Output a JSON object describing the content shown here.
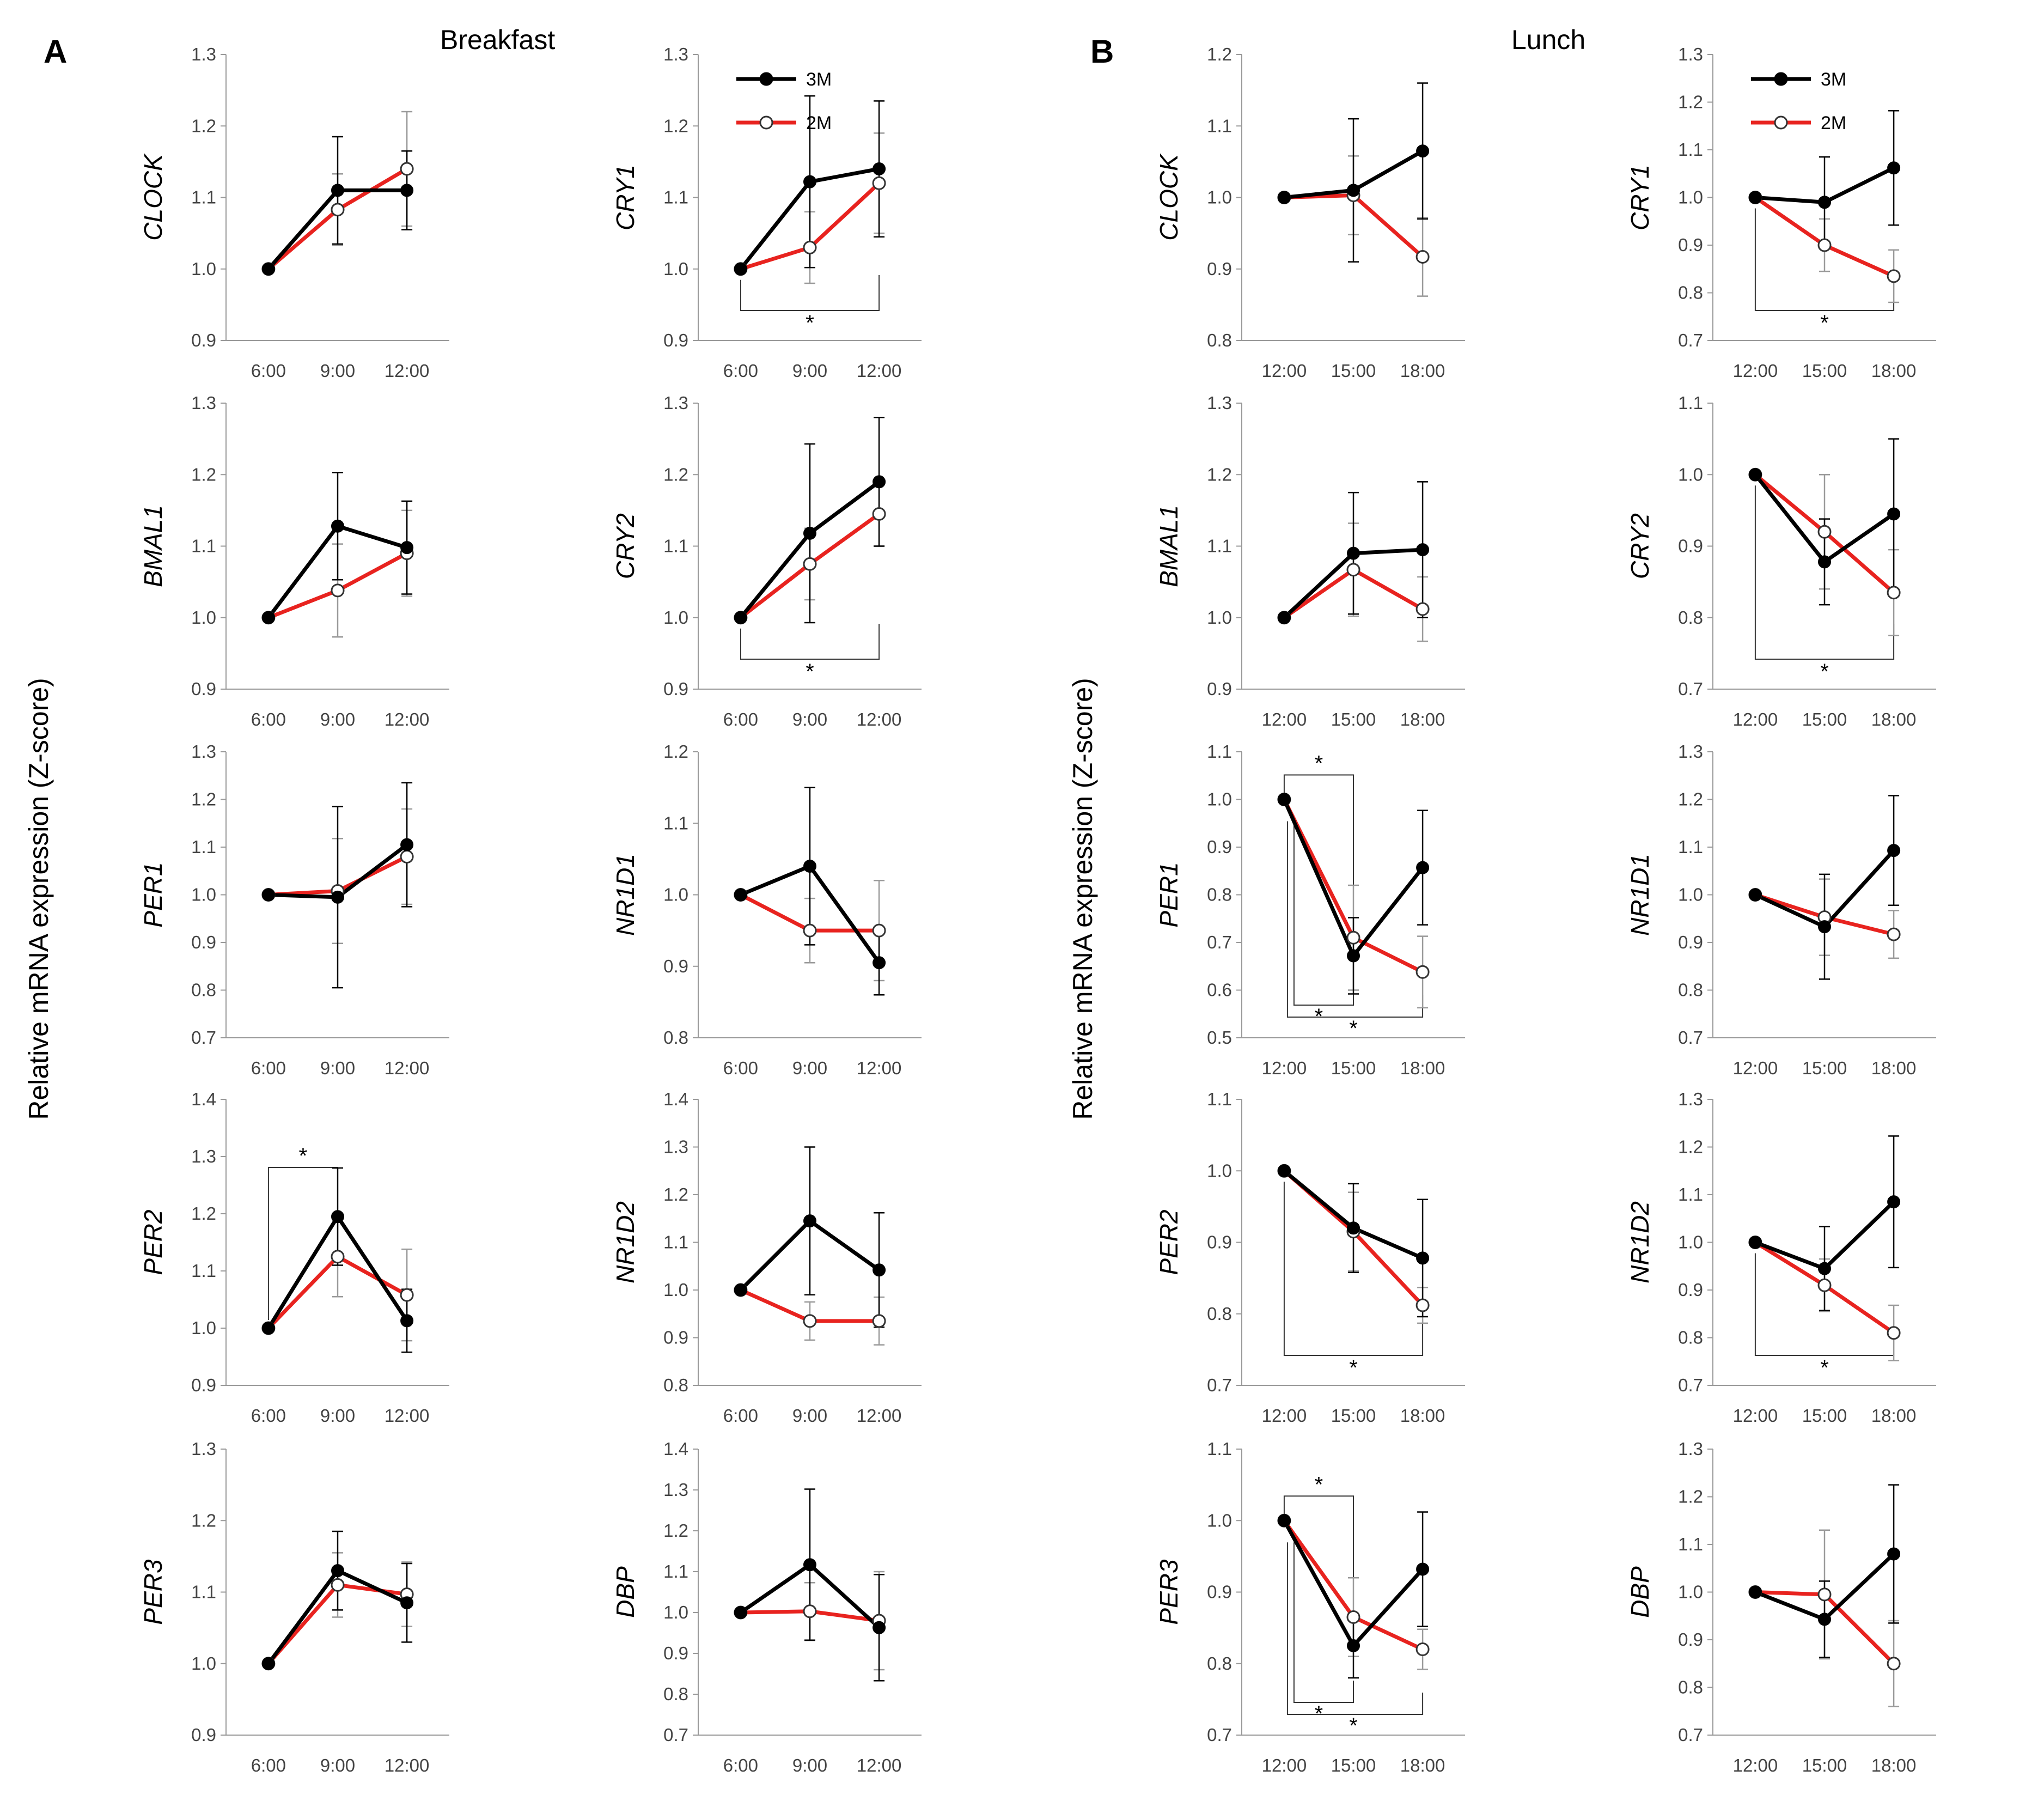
{
  "figure": {
    "colors": {
      "series_3M": "#000000",
      "series_2M": "#e8231f",
      "axis": "#999999",
      "error_2M": "#9a9a9a",
      "bracket": "#333333"
    },
    "panels": [
      {
        "letter": "A",
        "title": "Breakfast"
      },
      {
        "letter": "B",
        "title": "Lunch"
      }
    ],
    "shared_ylabel": "Relative mRNA expression (Z-score)",
    "legend": [
      {
        "name": "3M",
        "marker": "filled"
      },
      {
        "name": "2M",
        "marker": "open"
      }
    ]
  },
  "chart_data": [
    {
      "type": "line",
      "panel": "A",
      "gene": "CLOCK",
      "categories": [
        "6:00",
        "9:00",
        "12:00"
      ],
      "ylim": [
        0.9,
        1.3
      ],
      "yticks": [
        "0.9",
        "1.0",
        "1.1",
        "1.2",
        "1.3"
      ],
      "series": [
        {
          "name": "3M",
          "values": [
            1.0,
            1.11,
            1.11
          ],
          "err": [
            0,
            0.075,
            0.055
          ]
        },
        {
          "name": "2M",
          "values": [
            1.0,
            1.083,
            1.14
          ],
          "err": [
            0,
            0.05,
            0.08
          ]
        }
      ],
      "brackets": []
    },
    {
      "type": "line",
      "panel": "A",
      "gene": "CRY1",
      "categories": [
        "6:00",
        "9:00",
        "12:00"
      ],
      "ylim": [
        0.9,
        1.3
      ],
      "yticks": [
        "0.9",
        "1.0",
        "1.1",
        "1.2",
        "1.3"
      ],
      "legend": true,
      "series": [
        {
          "name": "3M",
          "values": [
            1.0,
            1.122,
            1.14
          ],
          "err": [
            0,
            0.12,
            0.095
          ]
        },
        {
          "name": "2M",
          "values": [
            1.0,
            1.03,
            1.12
          ],
          "err": [
            0,
            0.05,
            0.07
          ]
        }
      ],
      "brackets": [
        {
          "from": 0,
          "to": 2,
          "label": "*"
        }
      ]
    },
    {
      "type": "line",
      "panel": "A",
      "gene": "BMAL1",
      "categories": [
        "6:00",
        "9:00",
        "12:00"
      ],
      "ylim": [
        0.9,
        1.3
      ],
      "yticks": [
        "0.9",
        "1.0",
        "1.1",
        "1.2",
        "1.3"
      ],
      "series": [
        {
          "name": "3M",
          "values": [
            1.0,
            1.128,
            1.098
          ],
          "err": [
            0,
            0.075,
            0.065
          ]
        },
        {
          "name": "2M",
          "values": [
            1.0,
            1.038,
            1.09
          ],
          "err": [
            0,
            0.065,
            0.06
          ]
        }
      ],
      "brackets": []
    },
    {
      "type": "line",
      "panel": "A",
      "gene": "CRY2",
      "categories": [
        "6:00",
        "9:00",
        "12:00"
      ],
      "ylim": [
        0.9,
        1.3
      ],
      "yticks": [
        "0.9",
        "1.0",
        "1.1",
        "1.2",
        "1.3"
      ],
      "series": [
        {
          "name": "3M",
          "values": [
            1.0,
            1.118,
            1.19
          ],
          "err": [
            0,
            0.125,
            0.09
          ]
        },
        {
          "name": "2M",
          "values": [
            1.0,
            1.075,
            1.145
          ],
          "err": [
            0,
            0.05,
            0.045
          ]
        }
      ],
      "brackets": [
        {
          "from": 0,
          "to": 2,
          "label": "*"
        }
      ]
    },
    {
      "type": "line",
      "panel": "A",
      "gene": "PER1",
      "categories": [
        "6:00",
        "9:00",
        "12:00"
      ],
      "ylim": [
        0.7,
        1.3
      ],
      "yticks": [
        "0.7",
        "0.8",
        "0.9",
        "1.0",
        "1.1",
        "1.2",
        "1.3"
      ],
      "series": [
        {
          "name": "3M",
          "values": [
            1.0,
            0.995,
            1.105
          ],
          "err": [
            0,
            0.19,
            0.13
          ]
        },
        {
          "name": "2M",
          "values": [
            1.0,
            1.008,
            1.08
          ],
          "err": [
            0,
            0.11,
            0.1
          ]
        }
      ],
      "brackets": []
    },
    {
      "type": "line",
      "panel": "A",
      "gene": "NR1D1",
      "categories": [
        "6:00",
        "9:00",
        "12:00"
      ],
      "ylim": [
        0.8,
        1.2
      ],
      "yticks": [
        "0.8",
        "0.9",
        "1.0",
        "1.1",
        "1.2"
      ],
      "series": [
        {
          "name": "3M",
          "values": [
            1.0,
            1.04,
            0.905
          ],
          "err": [
            0,
            0.11,
            0.045
          ]
        },
        {
          "name": "2M",
          "values": [
            1.0,
            0.95,
            0.95
          ],
          "err": [
            0,
            0.045,
            0.07
          ]
        }
      ],
      "brackets": []
    },
    {
      "type": "line",
      "panel": "A",
      "gene": "PER2",
      "categories": [
        "6:00",
        "9:00",
        "12:00"
      ],
      "ylim": [
        0.9,
        1.4
      ],
      "yticks": [
        "0.9",
        "1.0",
        "1.1",
        "1.2",
        "1.3",
        "1.4"
      ],
      "series": [
        {
          "name": "3M",
          "values": [
            1.0,
            1.195,
            1.013
          ],
          "err": [
            0,
            0.085,
            0.055
          ]
        },
        {
          "name": "2M",
          "values": [
            1.0,
            1.125,
            1.058
          ],
          "err": [
            0,
            0.07,
            0.08
          ]
        }
      ],
      "brackets": [
        {
          "from": 0,
          "to": 1,
          "label": "*"
        }
      ]
    },
    {
      "type": "line",
      "panel": "A",
      "gene": "NR1D2",
      "categories": [
        "6:00",
        "9:00",
        "12:00"
      ],
      "ylim": [
        0.8,
        1.4
      ],
      "yticks": [
        "0.8",
        "0.9",
        "1.0",
        "1.1",
        "1.2",
        "1.3",
        "1.4"
      ],
      "series": [
        {
          "name": "3M",
          "values": [
            1.0,
            1.145,
            1.042
          ],
          "err": [
            0,
            0.155,
            0.12
          ]
        },
        {
          "name": "2M",
          "values": [
            1.0,
            0.935,
            0.935
          ],
          "err": [
            0,
            0.04,
            0.05
          ]
        }
      ],
      "brackets": []
    },
    {
      "type": "line",
      "panel": "A",
      "gene": "PER3",
      "categories": [
        "6:00",
        "9:00",
        "12:00"
      ],
      "ylim": [
        0.9,
        1.3
      ],
      "yticks": [
        "0.9",
        "1.0",
        "1.1",
        "1.2",
        "1.3"
      ],
      "series": [
        {
          "name": "3M",
          "values": [
            1.0,
            1.13,
            1.085
          ],
          "err": [
            0,
            0.055,
            0.055
          ]
        },
        {
          "name": "2M",
          "values": [
            1.0,
            1.11,
            1.097
          ],
          "err": [
            0,
            0.045,
            0.045
          ]
        }
      ],
      "brackets": []
    },
    {
      "type": "line",
      "panel": "A",
      "gene": "DBP",
      "categories": [
        "6:00",
        "9:00",
        "12:00"
      ],
      "ylim": [
        0.7,
        1.4
      ],
      "yticks": [
        "0.7",
        "0.8",
        "0.9",
        "1.0",
        "1.1",
        "1.2",
        "1.3",
        "1.4"
      ],
      "series": [
        {
          "name": "3M",
          "values": [
            1.0,
            1.117,
            0.963
          ],
          "err": [
            0,
            0.185,
            0.13
          ]
        },
        {
          "name": "2M",
          "values": [
            1.0,
            1.003,
            0.98
          ],
          "err": [
            0,
            0.07,
            0.12
          ]
        }
      ],
      "brackets": []
    },
    {
      "type": "line",
      "panel": "B",
      "gene": "CLOCK",
      "categories": [
        "12:00",
        "15:00",
        "18:00"
      ],
      "ylim": [
        0.8,
        1.2
      ],
      "yticks": [
        "0.8",
        "0.9",
        "1.0",
        "1.1",
        "1.2"
      ],
      "series": [
        {
          "name": "3M",
          "values": [
            1.0,
            1.01,
            1.065
          ],
          "err": [
            0,
            0.1,
            0.095
          ]
        },
        {
          "name": "2M",
          "values": [
            1.0,
            1.003,
            0.917
          ],
          "err": [
            0,
            0.055,
            0.055
          ]
        }
      ],
      "brackets": []
    },
    {
      "type": "line",
      "panel": "B",
      "gene": "CRY1",
      "categories": [
        "12:00",
        "15:00",
        "18:00"
      ],
      "ylim": [
        0.7,
        1.3
      ],
      "yticks": [
        "0.7",
        "0.8",
        "0.9",
        "1.0",
        "1.1",
        "1.2",
        "1.3"
      ],
      "legend": true,
      "series": [
        {
          "name": "3M",
          "values": [
            1.0,
            0.99,
            1.062
          ],
          "err": [
            0,
            0.095,
            0.12
          ]
        },
        {
          "name": "2M",
          "values": [
            1.0,
            0.9,
            0.835
          ],
          "err": [
            0,
            0.055,
            0.055
          ]
        }
      ],
      "brackets": [
        {
          "from": 0,
          "to": 2,
          "label": "*"
        }
      ]
    },
    {
      "type": "line",
      "panel": "B",
      "gene": "BMAL1",
      "categories": [
        "12:00",
        "15:00",
        "18:00"
      ],
      "ylim": [
        0.9,
        1.3
      ],
      "yticks": [
        "0.9",
        "1.0",
        "1.1",
        "1.2",
        "1.3"
      ],
      "series": [
        {
          "name": "3M",
          "values": [
            1.0,
            1.09,
            1.095
          ],
          "err": [
            0,
            0.085,
            0.095
          ]
        },
        {
          "name": "2M",
          "values": [
            1.0,
            1.067,
            1.012
          ],
          "err": [
            0,
            0.065,
            0.045
          ]
        }
      ],
      "brackets": []
    },
    {
      "type": "line",
      "panel": "B",
      "gene": "CRY2",
      "categories": [
        "12:00",
        "15:00",
        "18:00"
      ],
      "ylim": [
        0.7,
        1.1
      ],
      "yticks": [
        "0.7",
        "0.8",
        "0.9",
        "1.0",
        "1.1"
      ],
      "series": [
        {
          "name": "3M",
          "values": [
            1.0,
            0.878,
            0.945
          ],
          "err": [
            0,
            0.06,
            0.105
          ]
        },
        {
          "name": "2M",
          "values": [
            1.0,
            0.92,
            0.835
          ],
          "err": [
            0,
            0.08,
            0.06
          ]
        }
      ],
      "brackets": [
        {
          "from": 0,
          "to": 2,
          "label": "*"
        }
      ]
    },
    {
      "type": "line",
      "panel": "B",
      "gene": "PER1",
      "categories": [
        "12:00",
        "15:00",
        "18:00"
      ],
      "ylim": [
        0.5,
        1.1
      ],
      "yticks": [
        "0.5",
        "0.6",
        "0.7",
        "0.8",
        "0.9",
        "1.0",
        "1.1"
      ],
      "series": [
        {
          "name": "3M",
          "values": [
            1.0,
            0.672,
            0.857
          ],
          "err": [
            0,
            0.08,
            0.12
          ]
        },
        {
          "name": "2M",
          "values": [
            1.0,
            0.71,
            0.638
          ],
          "err": [
            0,
            0.11,
            0.075
          ]
        }
      ],
      "brackets": [
        {
          "from": 0,
          "to": 1,
          "label": "*",
          "pos": "above"
        },
        {
          "from": 0,
          "to": 1,
          "label": "*",
          "pos": "below"
        },
        {
          "from": 0,
          "to": 2,
          "label": "*",
          "pos": "below2"
        }
      ]
    },
    {
      "type": "line",
      "panel": "B",
      "gene": "NR1D1",
      "categories": [
        "12:00",
        "15:00",
        "18:00"
      ],
      "ylim": [
        0.7,
        1.3
      ],
      "yticks": [
        "0.7",
        "0.8",
        "0.9",
        "1.0",
        "1.1",
        "1.2",
        "1.3"
      ],
      "series": [
        {
          "name": "3M",
          "values": [
            1.0,
            0.933,
            1.093
          ],
          "err": [
            0,
            0.11,
            0.115
          ]
        },
        {
          "name": "2M",
          "values": [
            1.0,
            0.953,
            0.917
          ],
          "err": [
            0,
            0.08,
            0.05
          ]
        }
      ],
      "brackets": []
    },
    {
      "type": "line",
      "panel": "B",
      "gene": "PER2",
      "categories": [
        "12:00",
        "15:00",
        "18:00"
      ],
      "ylim": [
        0.7,
        1.1
      ],
      "yticks": [
        "0.7",
        "0.8",
        "0.9",
        "1.0",
        "1.1"
      ],
      "series": [
        {
          "name": "3M",
          "values": [
            1.0,
            0.92,
            0.878
          ],
          "err": [
            0,
            0.062,
            0.082
          ]
        },
        {
          "name": "2M",
          "values": [
            1.0,
            0.915,
            0.812
          ],
          "err": [
            0,
            0.055,
            0.025
          ]
        }
      ],
      "brackets": [
        {
          "from": 0,
          "to": 2,
          "label": "*"
        }
      ]
    },
    {
      "type": "line",
      "panel": "B",
      "gene": "NR1D2",
      "categories": [
        "12:00",
        "15:00",
        "18:00"
      ],
      "ylim": [
        0.7,
        1.3
      ],
      "yticks": [
        "0.7",
        "0.8",
        "0.9",
        "1.0",
        "1.1",
        "1.2",
        "1.3"
      ],
      "series": [
        {
          "name": "3M",
          "values": [
            1.0,
            0.945,
            1.085
          ],
          "err": [
            0,
            0.088,
            0.138
          ]
        },
        {
          "name": "2M",
          "values": [
            1.0,
            0.91,
            0.81
          ],
          "err": [
            0,
            0.055,
            0.058
          ]
        }
      ],
      "brackets": [
        {
          "from": 0,
          "to": 2,
          "label": "*"
        }
      ]
    },
    {
      "type": "line",
      "panel": "B",
      "gene": "PER3",
      "categories": [
        "12:00",
        "15:00",
        "18:00"
      ],
      "ylim": [
        0.7,
        1.1
      ],
      "yticks": [
        "0.7",
        "0.8",
        "0.9",
        "1.0",
        "1.1"
      ],
      "series": [
        {
          "name": "3M",
          "values": [
            1.0,
            0.825,
            0.932
          ],
          "err": [
            0,
            0.045,
            0.08
          ]
        },
        {
          "name": "2M",
          "values": [
            1.0,
            0.865,
            0.82
          ],
          "err": [
            0,
            0.055,
            0.028
          ]
        }
      ],
      "brackets": [
        {
          "from": 0,
          "to": 1,
          "label": "*",
          "pos": "above"
        },
        {
          "from": 0,
          "to": 1,
          "label": "*",
          "pos": "below"
        },
        {
          "from": 0,
          "to": 2,
          "label": "*",
          "pos": "below2"
        }
      ]
    },
    {
      "type": "line",
      "panel": "B",
      "gene": "DBP",
      "categories": [
        "12:00",
        "15:00",
        "18:00"
      ],
      "ylim": [
        0.7,
        1.3
      ],
      "yticks": [
        "0.7",
        "0.8",
        "0.9",
        "1.0",
        "1.1",
        "1.2",
        "1.3"
      ],
      "series": [
        {
          "name": "3M",
          "values": [
            1.0,
            0.943,
            1.08
          ],
          "err": [
            0,
            0.08,
            0.145
          ]
        },
        {
          "name": "2M",
          "values": [
            1.0,
            0.995,
            0.85
          ],
          "err": [
            0,
            0.135,
            0.09
          ]
        }
      ],
      "brackets": []
    }
  ]
}
